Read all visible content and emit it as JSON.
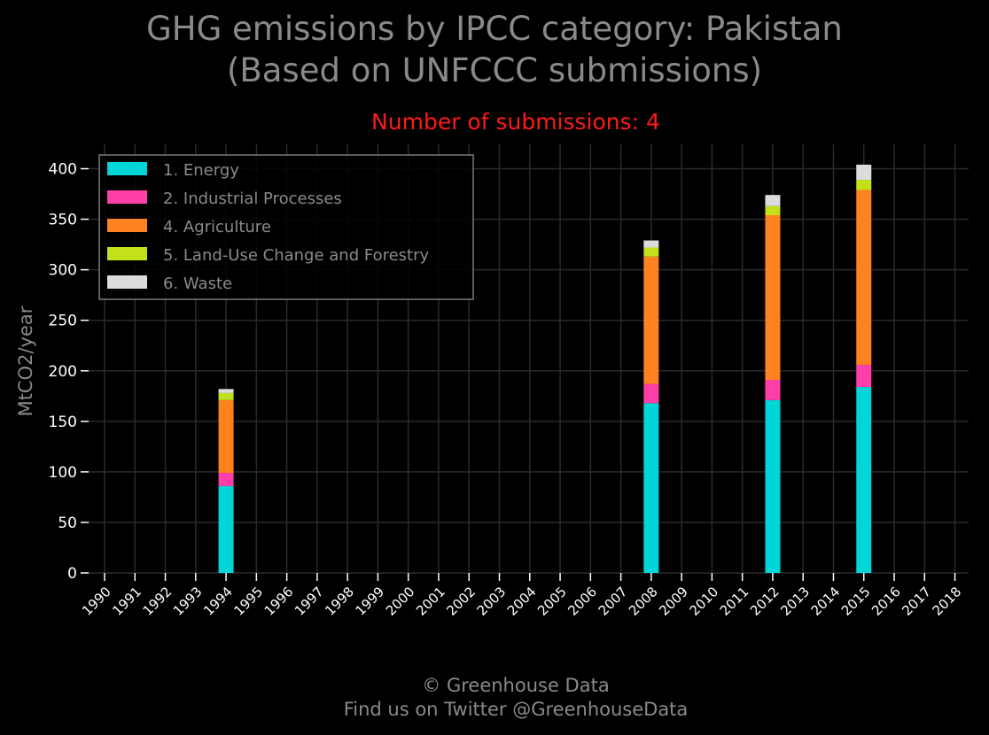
{
  "header": {
    "title_line1": "GHG emissions by IPCC category: Pakistan",
    "title_line2": "(Based on UNFCCC submissions)",
    "subtitle": "Number of submissions: 4"
  },
  "footer": {
    "line1": "© Greenhouse Data",
    "line2": "Find us on Twitter @GreenhouseData"
  },
  "colors": {
    "background": "#000000",
    "text": "#8a8a8a",
    "tick_text": "#ffffff",
    "subtitle": "#ff1a1a",
    "grid": "#2a2a2a"
  },
  "chart_data": {
    "type": "bar",
    "stacked": true,
    "grid": true,
    "legend_position": "top-left",
    "ylabel": "MtCO2/year",
    "xlabel": "",
    "ylim": [
      0,
      420
    ],
    "yticks": [
      0,
      50,
      100,
      150,
      200,
      250,
      300,
      350,
      400
    ],
    "categories": [
      "1990",
      "1991",
      "1992",
      "1993",
      "1994",
      "1995",
      "1996",
      "1997",
      "1998",
      "1999",
      "2000",
      "2001",
      "2002",
      "2003",
      "2004",
      "2005",
      "2006",
      "2007",
      "2008",
      "2009",
      "2010",
      "2011",
      "2012",
      "2013",
      "2014",
      "2015",
      "2016",
      "2017",
      "2018"
    ],
    "series": [
      {
        "name": "1. Energy",
        "color": "#00d5d8",
        "values": [
          0,
          0,
          0,
          0,
          86,
          0,
          0,
          0,
          0,
          0,
          0,
          0,
          0,
          0,
          0,
          0,
          0,
          0,
          168,
          0,
          0,
          0,
          171,
          0,
          0,
          184,
          0,
          0,
          0
        ]
      },
      {
        "name": "2. Industrial Processes",
        "color": "#ff3fa9",
        "values": [
          0,
          0,
          0,
          0,
          13,
          0,
          0,
          0,
          0,
          0,
          0,
          0,
          0,
          0,
          0,
          0,
          0,
          0,
          19,
          0,
          0,
          0,
          20,
          0,
          0,
          22,
          0,
          0,
          0
        ]
      },
      {
        "name": "4. Agriculture",
        "color": "#ff8220",
        "values": [
          0,
          0,
          0,
          0,
          72,
          0,
          0,
          0,
          0,
          0,
          0,
          0,
          0,
          0,
          0,
          0,
          0,
          0,
          126,
          0,
          0,
          0,
          163,
          0,
          0,
          173,
          0,
          0,
          0
        ]
      },
      {
        "name": "5. Land-Use Change and Forestry",
        "color": "#c3e01a",
        "values": [
          0,
          0,
          0,
          0,
          7,
          0,
          0,
          0,
          0,
          0,
          0,
          0,
          0,
          0,
          0,
          0,
          0,
          0,
          9,
          0,
          0,
          0,
          9,
          0,
          0,
          10,
          0,
          0,
          0
        ]
      },
      {
        "name": "6. Waste",
        "color": "#dcdcdc",
        "values": [
          0,
          0,
          0,
          0,
          4,
          0,
          0,
          0,
          0,
          0,
          0,
          0,
          0,
          0,
          0,
          0,
          0,
          0,
          7,
          0,
          0,
          0,
          11,
          0,
          0,
          15,
          0,
          0,
          0
        ]
      }
    ]
  }
}
